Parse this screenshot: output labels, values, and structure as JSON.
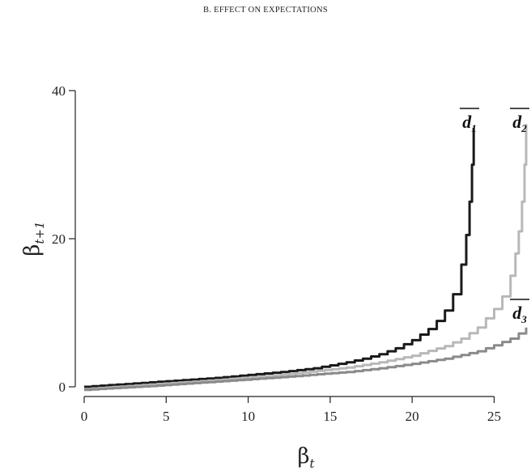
{
  "chart_data": {
    "type": "line",
    "title": "B. EFFECT ON EXPECTATIONS",
    "xlabel": "β",
    "xlabel_sub": "t",
    "ylabel": "β",
    "ylabel_sub": "t+1",
    "xlim": [
      0,
      27
    ],
    "ylim": [
      0,
      40
    ],
    "xticks": [
      0,
      5,
      10,
      15,
      20,
      25
    ],
    "yticks": [
      0,
      20,
      40
    ],
    "grid": false,
    "series": [
      {
        "name": "d",
        "name_sub": "1",
        "overline": true,
        "color": "#1a1a1a",
        "x": [
          0,
          2,
          4,
          6,
          8,
          10,
          12,
          14,
          16,
          17,
          18,
          19,
          20,
          21,
          21.5,
          22,
          22.5,
          23,
          23.3,
          23.5,
          23.65,
          23.75
        ],
        "y": [
          0,
          0.3,
          0.6,
          0.9,
          1.2,
          1.6,
          2.0,
          2.5,
          3.3,
          3.8,
          4.4,
          5.2,
          6.3,
          7.8,
          8.9,
          10.3,
          12.5,
          16.5,
          20.5,
          25,
          30,
          35
        ]
      },
      {
        "name": "d",
        "name_sub": "2",
        "overline": true,
        "color": "#b8b8b8",
        "x": [
          0,
          4,
          8,
          12,
          16,
          18,
          20,
          22,
          23,
          24,
          25,
          25.5,
          26,
          26.3,
          26.5,
          26.7,
          26.85,
          26.95
        ],
        "y": [
          -0.3,
          0.3,
          0.9,
          1.6,
          2.6,
          3.3,
          4.2,
          5.5,
          6.5,
          8.0,
          10.5,
          12.2,
          15,
          18,
          21,
          25,
          30,
          35.5
        ]
      },
      {
        "name": "d",
        "name_sub": "3",
        "overline": true,
        "color": "#8a8a8a",
        "x": [
          0,
          4,
          8,
          12,
          16,
          18,
          20,
          22,
          24,
          25,
          26,
          26.5,
          26.95
        ],
        "y": [
          -0.4,
          0.1,
          0.7,
          1.3,
          2.0,
          2.5,
          3.1,
          3.8,
          4.8,
          5.6,
          6.5,
          7.2,
          8.0
        ]
      }
    ]
  }
}
